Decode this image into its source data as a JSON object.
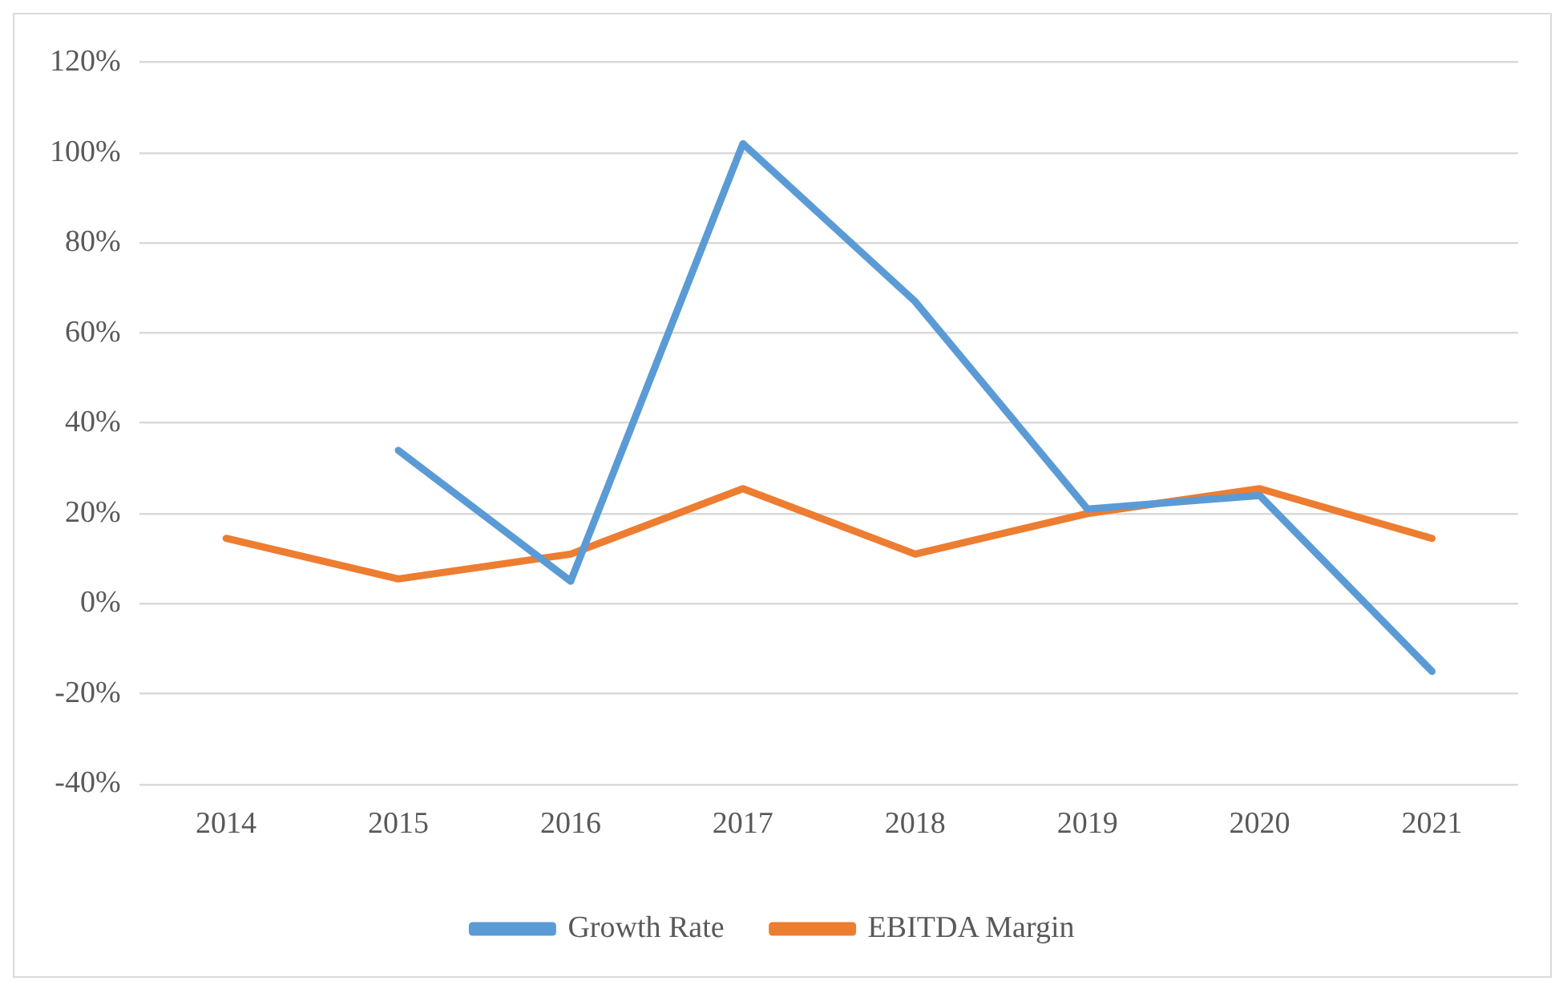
{
  "chart_data": {
    "type": "line",
    "categories": [
      "2014",
      "2015",
      "2016",
      "2017",
      "2018",
      "2019",
      "2020",
      "2021"
    ],
    "series": [
      {
        "name": "Growth Rate",
        "color": "#5b9bd5",
        "values": [
          null,
          34,
          5,
          102,
          67,
          21,
          24,
          -15
        ]
      },
      {
        "name": "EBITDA Margin",
        "color": "#ed7d31",
        "values": [
          14.5,
          5.5,
          11,
          25.5,
          11,
          20,
          25.5,
          14.5
        ]
      }
    ],
    "ylim": [
      -40,
      120
    ],
    "yticks": [
      {
        "value": -40,
        "label": "-40%"
      },
      {
        "value": -20,
        "label": "-20%"
      },
      {
        "value": 0,
        "label": "0%"
      },
      {
        "value": 20,
        "label": "20%"
      },
      {
        "value": 40,
        "label": "40%"
      },
      {
        "value": 60,
        "label": "60%"
      },
      {
        "value": 80,
        "label": "80%"
      },
      {
        "value": 100,
        "label": "100%"
      },
      {
        "value": 120,
        "label": "120%"
      }
    ],
    "grid": "y",
    "legend": "bottom",
    "marker": "none",
    "line_style": "solid"
  }
}
